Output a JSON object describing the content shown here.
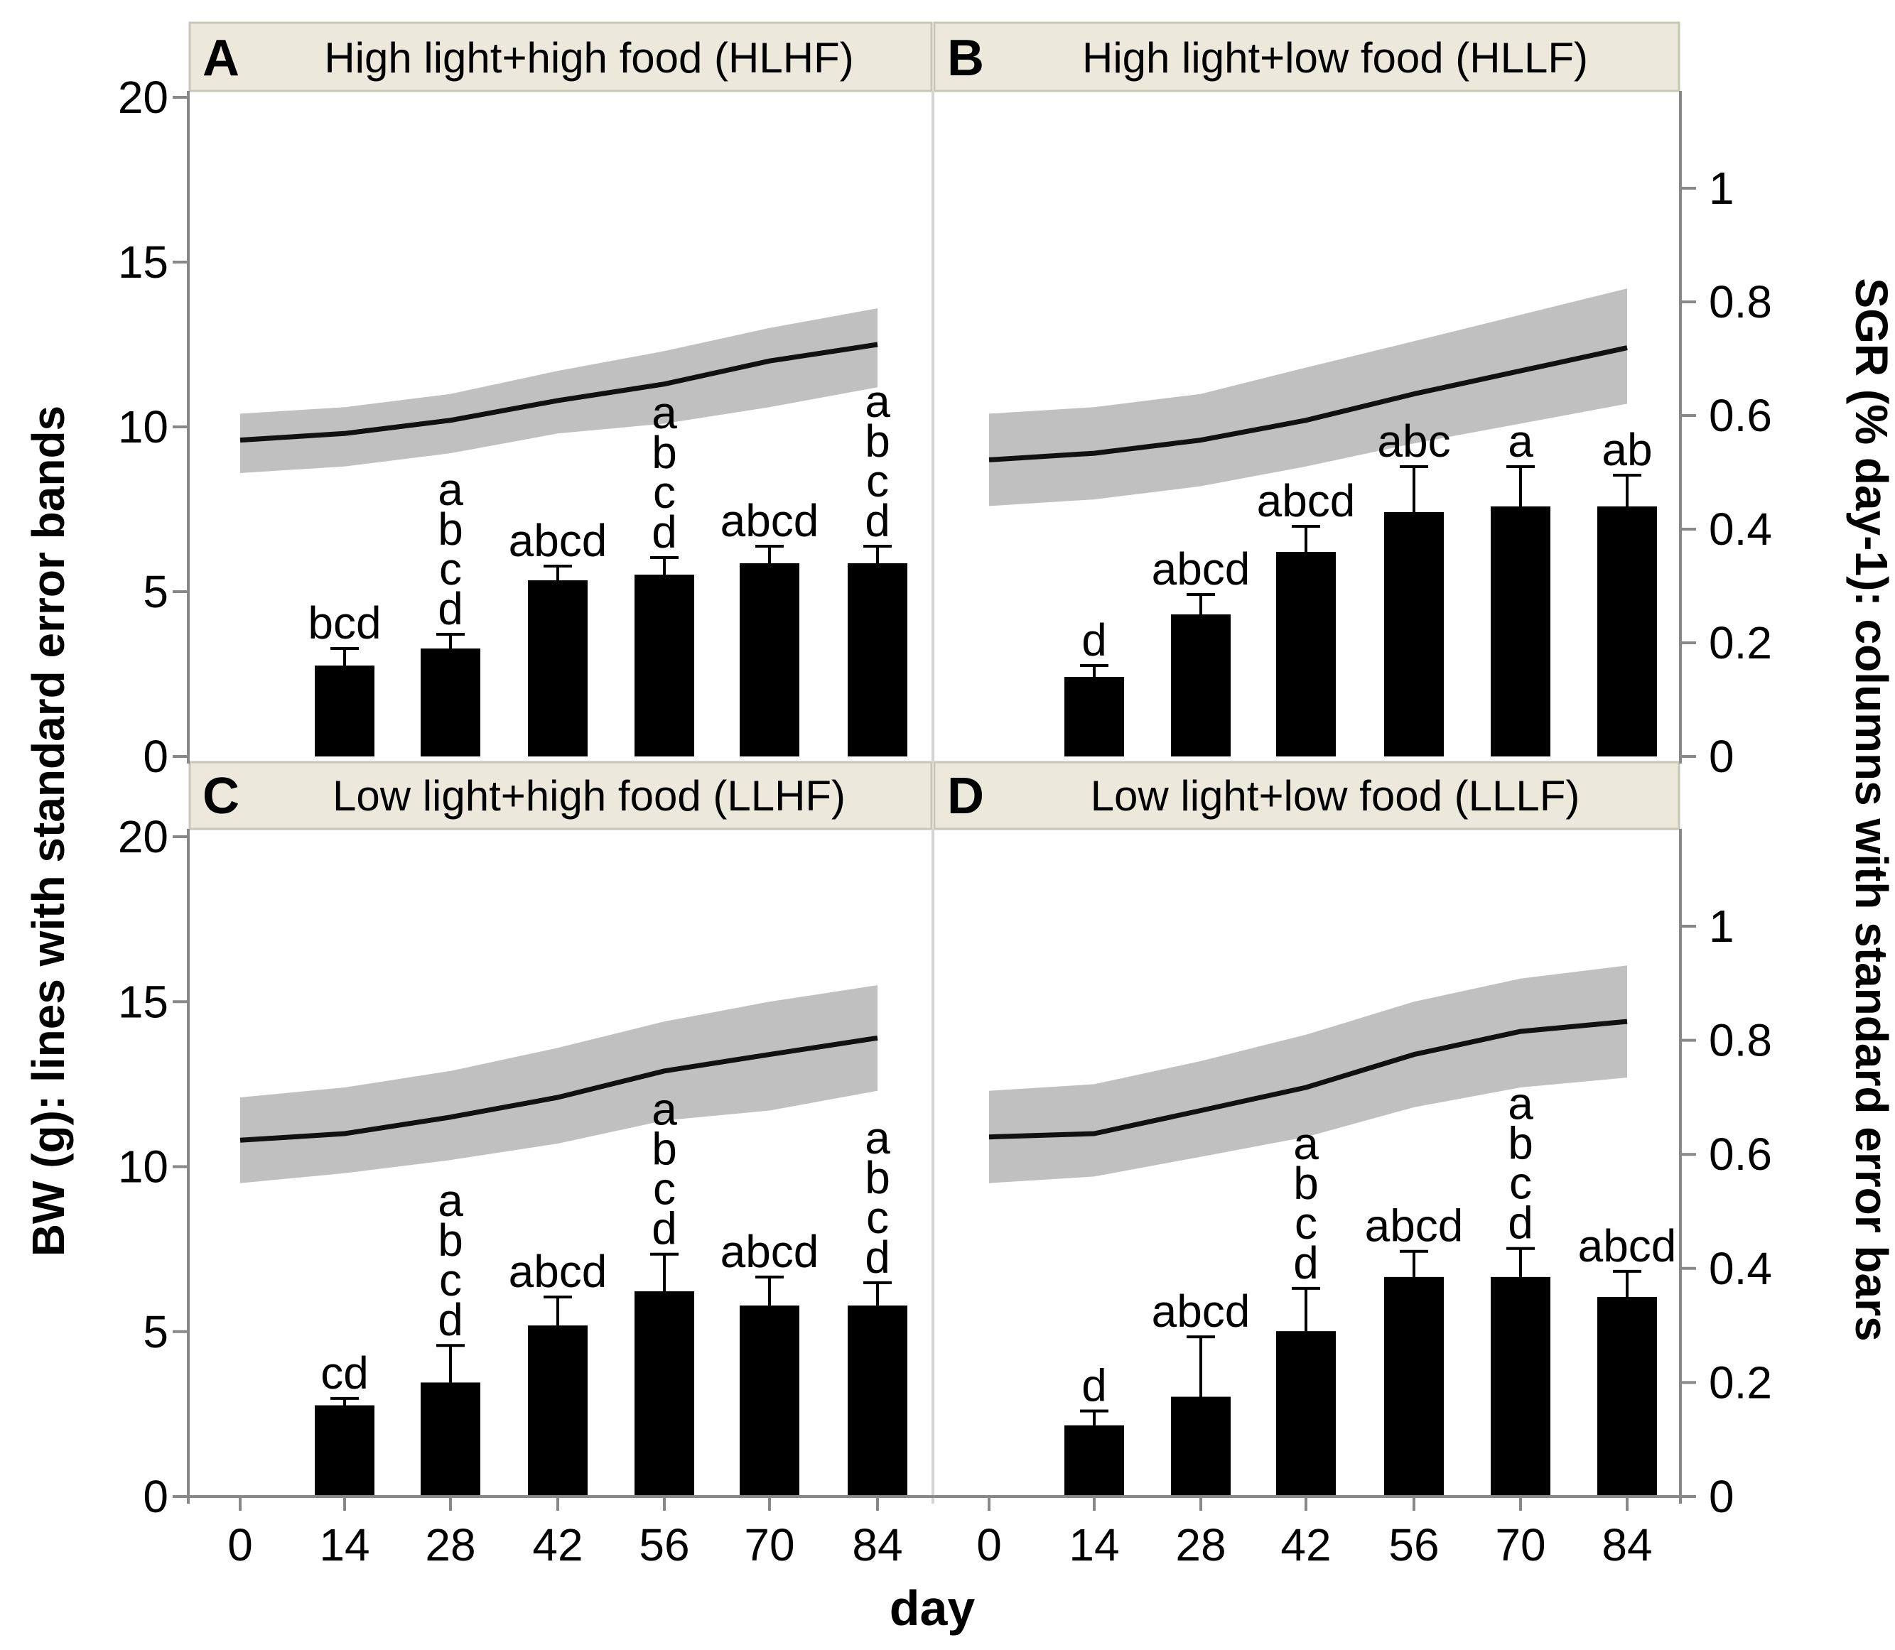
{
  "chart_data": {
    "type": "bar+line",
    "shared_x_label": "day",
    "shared_y_left_label": "BW (g): lines with standard error bands",
    "shared_y_right_label": "SGR (% day-1): columns with standard error bars",
    "x_ticks": [
      "0",
      "14",
      "28",
      "42",
      "56",
      "70",
      "84"
    ],
    "left_axis": {
      "ylim": [
        0,
        20
      ],
      "ticks": [
        "0",
        "5",
        "10",
        "15",
        "20"
      ]
    },
    "right_axis": {
      "ylim": [
        0,
        1.15
      ],
      "ticks": [
        "0",
        "0.2",
        "0.4",
        "0.6",
        "0.8",
        "1"
      ]
    },
    "colors": {
      "band": "#c0c0c0",
      "line": "#111111",
      "bar": "#000000",
      "header_bg": "#ece9dc",
      "header_border": "#c9c6b4",
      "axis": "#888888"
    },
    "panels": [
      {
        "letter": "A",
        "title": "High light+high food (HLHF)",
        "bw": {
          "days": [
            0,
            14,
            28,
            42,
            56,
            70,
            84
          ],
          "mean": [
            9.6,
            9.8,
            10.2,
            10.8,
            11.3,
            12.0,
            12.5
          ],
          "lower": [
            8.6,
            8.8,
            9.2,
            9.8,
            10.1,
            10.6,
            11.2
          ],
          "upper": [
            10.4,
            10.6,
            11.0,
            11.7,
            12.3,
            13.0,
            13.6
          ]
        },
        "sgr": {
          "days": [
            14,
            28,
            42,
            56,
            70,
            84
          ],
          "values": [
            0.16,
            0.19,
            0.31,
            0.32,
            0.34,
            0.34
          ],
          "errors": [
            0.03,
            0.025,
            0.025,
            0.03,
            0.03,
            0.03
          ],
          "letters": [
            "bcd",
            "a\nb\nc\nd",
            "abcd",
            "a\nb\nc\nd",
            "abcd",
            "a\nb\nc\nd"
          ]
        }
      },
      {
        "letter": "B",
        "title": "High light+low food (HLLF)",
        "bw": {
          "days": [
            0,
            14,
            28,
            42,
            56,
            70,
            84
          ],
          "mean": [
            9.0,
            9.2,
            9.6,
            10.2,
            11.0,
            11.7,
            12.4
          ],
          "lower": [
            7.6,
            7.8,
            8.2,
            8.8,
            9.5,
            10.1,
            10.7
          ],
          "upper": [
            10.4,
            10.6,
            11.0,
            11.8,
            12.6,
            13.4,
            14.2
          ]
        },
        "sgr": {
          "days": [
            14,
            28,
            42,
            56,
            70,
            84
          ],
          "values": [
            0.14,
            0.25,
            0.36,
            0.43,
            0.44,
            0.44
          ],
          "errors": [
            0.02,
            0.035,
            0.045,
            0.08,
            0.07,
            0.055
          ],
          "letters": [
            "d",
            "abcd",
            "abcd",
            "abc",
            "a",
            "ab"
          ]
        }
      },
      {
        "letter": "C",
        "title": "Low light+high food (LLHF)",
        "bw": {
          "days": [
            0,
            14,
            28,
            42,
            56,
            70,
            84
          ],
          "mean": [
            10.8,
            11.0,
            11.5,
            12.1,
            12.9,
            13.4,
            13.9
          ],
          "lower": [
            9.5,
            9.8,
            10.2,
            10.7,
            11.4,
            11.7,
            12.3
          ],
          "upper": [
            12.1,
            12.4,
            12.9,
            13.6,
            14.4,
            15.0,
            15.5
          ]
        },
        "sgr": {
          "days": [
            14,
            28,
            42,
            56,
            70,
            84
          ],
          "values": [
            0.16,
            0.2,
            0.3,
            0.36,
            0.335,
            0.335
          ],
          "errors": [
            0.012,
            0.065,
            0.05,
            0.065,
            0.05,
            0.04
          ],
          "letters": [
            "cd",
            "a\nb\nc\nd",
            "abcd",
            "a\nb\nc\nd",
            "abcd",
            "a\nb\nc\nd"
          ]
        }
      },
      {
        "letter": "D",
        "title": "Low light+low food (LLLF)",
        "bw": {
          "days": [
            0,
            14,
            28,
            42,
            56,
            70,
            84
          ],
          "mean": [
            10.9,
            11.0,
            11.7,
            12.4,
            13.4,
            14.1,
            14.4
          ],
          "lower": [
            9.5,
            9.7,
            10.3,
            10.9,
            11.8,
            12.4,
            12.7
          ],
          "upper": [
            12.3,
            12.5,
            13.2,
            14.0,
            15.0,
            15.7,
            16.1
          ]
        },
        "sgr": {
          "days": [
            14,
            28,
            42,
            56,
            70,
            84
          ],
          "values": [
            0.125,
            0.175,
            0.29,
            0.385,
            0.385,
            0.35
          ],
          "errors": [
            0.025,
            0.105,
            0.075,
            0.045,
            0.05,
            0.045
          ],
          "letters": [
            "d",
            "abcd",
            "a\nb\nc\nd",
            "abcd",
            "a\nb\nc\nd",
            "abcd"
          ]
        }
      }
    ]
  }
}
